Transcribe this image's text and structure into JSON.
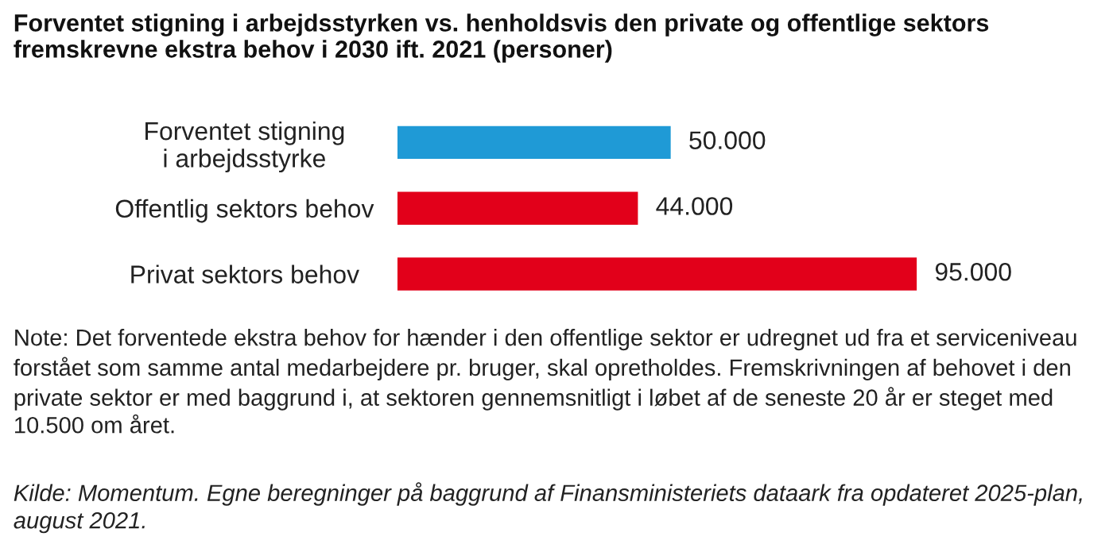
{
  "chart_data": {
    "type": "bar",
    "orientation": "horizontal",
    "title": "Forventet stigning i arbejdsstyrken vs. henholdsvis den private og offentlige sektors fremskrevne ekstra behov i 2030 ift. 2021 (personer)",
    "categories": [
      "Forventet stigning\ni arbejdsstyrke",
      "Offentlig sektors behov",
      "Privat sektors behov"
    ],
    "values": [
      50000,
      44000,
      95000
    ],
    "colors": [
      "#1f9ad6",
      "#e2001a",
      "#e2001a"
    ],
    "value_labels": [
      "50.000",
      "44.000",
      "95.000"
    ],
    "annotations": [
      "Note: Det forventede ekstra behov for hænder i den offentlige sektor er udregnet ud fra et serviceniveau forstået som samme antal medarbejdere pr. bruger, skal opretholdes. Fremskrivningen af behovet i den private sektor er med baggrund i, at sektoren gennemsnitligt i løbet af de seneste 20 år er steget med 10.500 om året.",
      "Kilde: Momentum. Egne beregninger på baggrund af Finansministeriets dataark fra opdateret 2025-plan, august 2021."
    ],
    "grid": false,
    "legend": false
  }
}
